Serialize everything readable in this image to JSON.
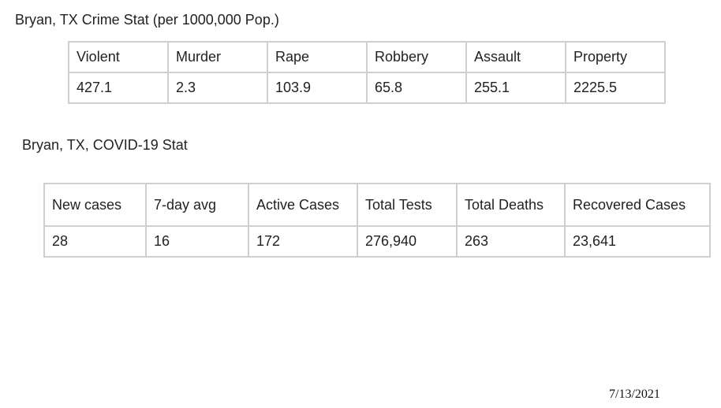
{
  "crime": {
    "title": "Bryan, TX Crime Stat (per 1000,000 Pop.)",
    "headers": [
      "Violent",
      "Murder",
      "Rape",
      "Robbery",
      "Assault",
      "Property"
    ],
    "values": [
      "427.1",
      "2.3",
      "103.9",
      "65.8",
      "255.1",
      "2225.5"
    ]
  },
  "covid": {
    "title": "Bryan, TX, COVID-19 Stat",
    "headers": [
      "New cases",
      "7-day avg",
      "Active Cases",
      "Total Tests",
      "Total Deaths",
      "Recovered Cases"
    ],
    "values": [
      "28",
      "16",
      "172",
      "276,940",
      "263",
      "23,641"
    ]
  },
  "footer": {
    "date": "7/13/2021"
  }
}
